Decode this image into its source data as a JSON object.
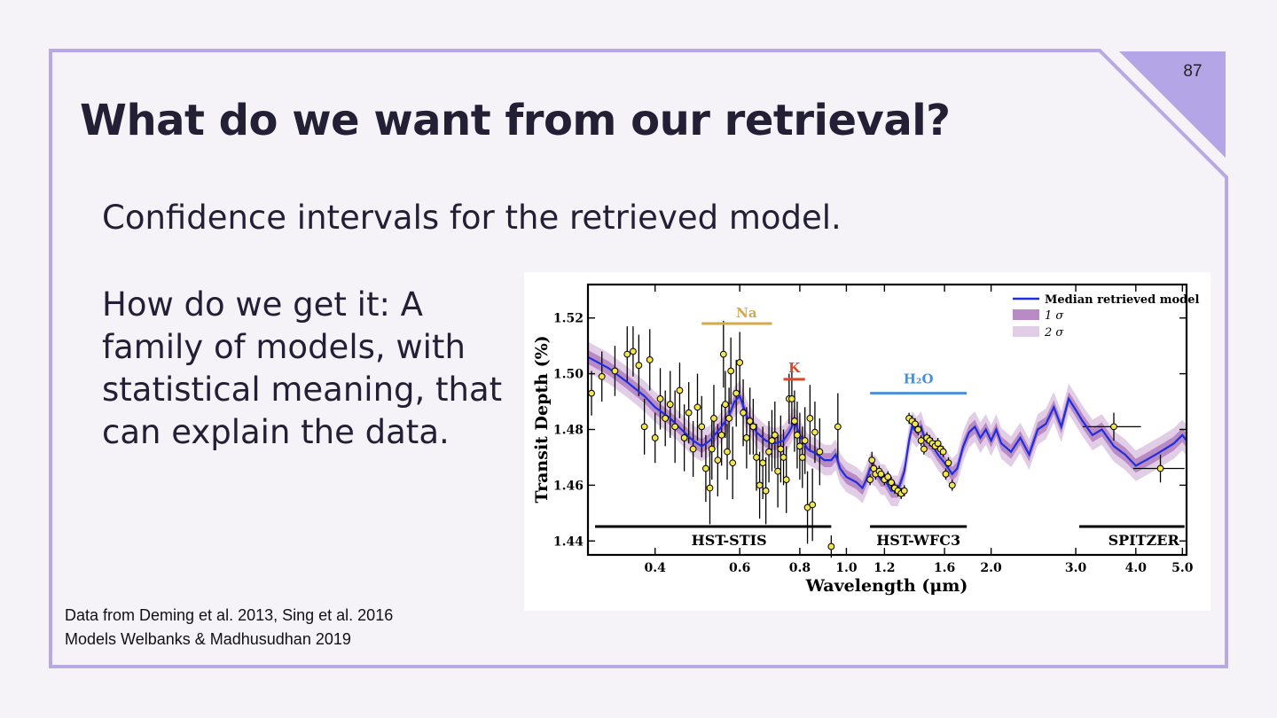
{
  "slide": {
    "page_number": "87",
    "title": "What do we want from our retrieval?",
    "paragraph1": "Confidence intervals for the retrieved model.",
    "paragraph2": "How do we get it: A family of models, with statistical meaning, that can explain the data.",
    "citation1": "Data from Deming et al. 2013, Sing et al. 2016",
    "citation2": "Models Welbanks & Madhusudhan 2019",
    "colors": {
      "accent": "#b4a6e6",
      "frame": "#b7a8e8",
      "text": "#232036",
      "background": "#f5f3f8"
    }
  },
  "chart_data": {
    "type": "line",
    "xscale": "log",
    "xlim": [
      0.29,
      5.1
    ],
    "ylim": [
      1.435,
      1.532
    ],
    "xlabel": "Wavelength (μm)",
    "ylabel": "Transit Depth (%)",
    "xticks": [
      {
        "v": 0.4,
        "l": "0.4"
      },
      {
        "v": 0.6,
        "l": "0.6"
      },
      {
        "v": 0.8,
        "l": "0.8"
      },
      {
        "v": 1.0,
        "l": "1.0"
      },
      {
        "v": 1.2,
        "l": "1.2"
      },
      {
        "v": 1.6,
        "l": "1.6"
      },
      {
        "v": 2.0,
        "l": "2.0"
      },
      {
        "v": 3.0,
        "l": "3.0"
      },
      {
        "v": 4.0,
        "l": "4.0"
      },
      {
        "v": 5.0,
        "l": "5.0"
      }
    ],
    "yticks": [
      {
        "v": 1.44,
        "l": "1.44"
      },
      {
        "v": 1.46,
        "l": "1.46"
      },
      {
        "v": 1.48,
        "l": "1.48"
      },
      {
        "v": 1.5,
        "l": "1.50"
      },
      {
        "v": 1.52,
        "l": "1.52"
      }
    ],
    "legend": {
      "placement": "top-right",
      "entries": [
        "Median retrieved model",
        "1 σ",
        "2 σ"
      ]
    },
    "model": {
      "name": "Median retrieved model",
      "x": [
        0.29,
        0.32,
        0.35,
        0.38,
        0.4,
        0.43,
        0.46,
        0.48,
        0.5,
        0.52,
        0.55,
        0.57,
        0.585,
        0.6,
        0.62,
        0.65,
        0.68,
        0.71,
        0.74,
        0.76,
        0.77,
        0.78,
        0.8,
        0.83,
        0.87,
        0.9,
        0.93,
        0.95,
        0.97,
        1.0,
        1.05,
        1.08,
        1.1,
        1.12,
        1.15,
        1.18,
        1.2,
        1.24,
        1.28,
        1.32,
        1.35,
        1.37,
        1.4,
        1.43,
        1.46,
        1.5,
        1.55,
        1.6,
        1.66,
        1.7,
        1.75,
        1.8,
        1.85,
        1.9,
        1.95,
        2.0,
        2.05,
        2.1,
        2.2,
        2.3,
        2.4,
        2.5,
        2.6,
        2.7,
        2.8,
        2.9,
        3.0,
        3.1,
        3.25,
        3.4,
        3.6,
        3.8,
        4.0,
        4.2,
        4.4,
        4.6,
        4.8,
        5.0,
        5.1
      ],
      "y": [
        1.506,
        1.502,
        1.497,
        1.492,
        1.488,
        1.484,
        1.479,
        1.476,
        1.474,
        1.476,
        1.481,
        1.485,
        1.49,
        1.492,
        1.485,
        1.479,
        1.476,
        1.475,
        1.476,
        1.479,
        1.481,
        1.483,
        1.478,
        1.473,
        1.471,
        1.469,
        1.469,
        1.471,
        1.466,
        1.463,
        1.461,
        1.459,
        1.462,
        1.466,
        1.465,
        1.462,
        1.462,
        1.458,
        1.458,
        1.465,
        1.476,
        1.481,
        1.479,
        1.481,
        1.476,
        1.475,
        1.471,
        1.468,
        1.464,
        1.466,
        1.474,
        1.479,
        1.481,
        1.477,
        1.48,
        1.476,
        1.48,
        1.475,
        1.472,
        1.477,
        1.471,
        1.48,
        1.482,
        1.488,
        1.481,
        1.491,
        1.487,
        1.483,
        1.478,
        1.48,
        1.474,
        1.471,
        1.467,
        1.469,
        1.471,
        1.473,
        1.475,
        1.478,
        1.476
      ],
      "sigma1": 0.0025,
      "sigma2": 0.0055
    },
    "data_points": [
      {
        "x": 0.295,
        "y": 1.493,
        "e": 0.008
      },
      {
        "x": 0.31,
        "y": 1.499,
        "e": 0.009
      },
      {
        "x": 0.33,
        "y": 1.501,
        "e": 0.009
      },
      {
        "x": 0.35,
        "y": 1.507,
        "e": 0.01
      },
      {
        "x": 0.36,
        "y": 1.508,
        "e": 0.009
      },
      {
        "x": 0.37,
        "y": 1.503,
        "e": 0.011
      },
      {
        "x": 0.38,
        "y": 1.481,
        "e": 0.01
      },
      {
        "x": 0.39,
        "y": 1.505,
        "e": 0.011
      },
      {
        "x": 0.4,
        "y": 1.477,
        "e": 0.009
      },
      {
        "x": 0.41,
        "y": 1.491,
        "e": 0.011
      },
      {
        "x": 0.42,
        "y": 1.484,
        "e": 0.01
      },
      {
        "x": 0.43,
        "y": 1.489,
        "e": 0.012
      },
      {
        "x": 0.44,
        "y": 1.481,
        "e": 0.013
      },
      {
        "x": 0.45,
        "y": 1.494,
        "e": 0.01
      },
      {
        "x": 0.46,
        "y": 1.477,
        "e": 0.012
      },
      {
        "x": 0.47,
        "y": 1.486,
        "e": 0.011
      },
      {
        "x": 0.48,
        "y": 1.473,
        "e": 0.01
      },
      {
        "x": 0.49,
        "y": 1.488,
        "e": 0.012
      },
      {
        "x": 0.5,
        "y": 1.481,
        "e": 0.011
      },
      {
        "x": 0.51,
        "y": 1.466,
        "e": 0.012
      },
      {
        "x": 0.52,
        "y": 1.459,
        "e": 0.013
      },
      {
        "x": 0.525,
        "y": 1.473,
        "e": 0.011
      },
      {
        "x": 0.53,
        "y": 1.484,
        "e": 0.012
      },
      {
        "x": 0.54,
        "y": 1.469,
        "e": 0.013
      },
      {
        "x": 0.55,
        "y": 1.478,
        "e": 0.011
      },
      {
        "x": 0.555,
        "y": 1.507,
        "e": 0.012
      },
      {
        "x": 0.56,
        "y": 1.489,
        "e": 0.012
      },
      {
        "x": 0.565,
        "y": 1.472,
        "e": 0.01
      },
      {
        "x": 0.57,
        "y": 1.484,
        "e": 0.011
      },
      {
        "x": 0.575,
        "y": 1.501,
        "e": 0.012
      },
      {
        "x": 0.58,
        "y": 1.468,
        "e": 0.013
      },
      {
        "x": 0.59,
        "y": 1.493,
        "e": 0.012
      },
      {
        "x": 0.6,
        "y": 1.504,
        "e": 0.011
      },
      {
        "x": 0.61,
        "y": 1.486,
        "e": 0.012
      },
      {
        "x": 0.62,
        "y": 1.477,
        "e": 0.011
      },
      {
        "x": 0.63,
        "y": 1.483,
        "e": 0.012
      },
      {
        "x": 0.64,
        "y": 1.481,
        "e": 0.01
      },
      {
        "x": 0.65,
        "y": 1.47,
        "e": 0.012
      },
      {
        "x": 0.66,
        "y": 1.46,
        "e": 0.012
      },
      {
        "x": 0.67,
        "y": 1.468,
        "e": 0.013
      },
      {
        "x": 0.68,
        "y": 1.458,
        "e": 0.012
      },
      {
        "x": 0.69,
        "y": 1.472,
        "e": 0.011
      },
      {
        "x": 0.7,
        "y": 1.476,
        "e": 0.011
      },
      {
        "x": 0.71,
        "y": 1.478,
        "e": 0.012
      },
      {
        "x": 0.72,
        "y": 1.465,
        "e": 0.013
      },
      {
        "x": 0.73,
        "y": 1.473,
        "e": 0.012
      },
      {
        "x": 0.74,
        "y": 1.47,
        "e": 0.01
      },
      {
        "x": 0.75,
        "y": 1.462,
        "e": 0.012
      },
      {
        "x": 0.76,
        "y": 1.491,
        "e": 0.009
      },
      {
        "x": 0.77,
        "y": 1.491,
        "e": 0.01
      },
      {
        "x": 0.78,
        "y": 1.483,
        "e": 0.011
      },
      {
        "x": 0.79,
        "y": 1.478,
        "e": 0.012
      },
      {
        "x": 0.8,
        "y": 1.474,
        "e": 0.012
      },
      {
        "x": 0.81,
        "y": 1.47,
        "e": 0.011
      },
      {
        "x": 0.82,
        "y": 1.476,
        "e": 0.012
      },
      {
        "x": 0.83,
        "y": 1.452,
        "e": 0.013
      },
      {
        "x": 0.84,
        "y": 1.484,
        "e": 0.012
      },
      {
        "x": 0.85,
        "y": 1.453,
        "e": 0.013
      },
      {
        "x": 0.86,
        "y": 1.479,
        "e": 0.011
      },
      {
        "x": 0.88,
        "y": 1.472,
        "e": 0.012
      },
      {
        "x": 0.93,
        "y": 1.438,
        "e": 0.004
      },
      {
        "x": 0.96,
        "y": 1.481,
        "e": 0.012
      },
      {
        "x": 1.12,
        "y": 1.462,
        "e": 0.002
      },
      {
        "x": 1.13,
        "y": 1.469,
        "e": 0.003
      },
      {
        "x": 1.14,
        "y": 1.466,
        "e": 0.002
      },
      {
        "x": 1.15,
        "y": 1.464,
        "e": 0.002
      },
      {
        "x": 1.17,
        "y": 1.465,
        "e": 0.002
      },
      {
        "x": 1.18,
        "y": 1.464,
        "e": 0.002
      },
      {
        "x": 1.2,
        "y": 1.462,
        "e": 0.002
      },
      {
        "x": 1.22,
        "y": 1.463,
        "e": 0.002
      },
      {
        "x": 1.24,
        "y": 1.461,
        "e": 0.002
      },
      {
        "x": 1.26,
        "y": 1.459,
        "e": 0.002
      },
      {
        "x": 1.28,
        "y": 1.458,
        "e": 0.002
      },
      {
        "x": 1.3,
        "y": 1.457,
        "e": 0.002
      },
      {
        "x": 1.32,
        "y": 1.458,
        "e": 0.002
      },
      {
        "x": 1.35,
        "y": 1.484,
        "e": 0.002
      },
      {
        "x": 1.37,
        "y": 1.483,
        "e": 0.002
      },
      {
        "x": 1.39,
        "y": 1.482,
        "e": 0.002
      },
      {
        "x": 1.41,
        "y": 1.48,
        "e": 0.002
      },
      {
        "x": 1.43,
        "y": 1.476,
        "e": 0.002
      },
      {
        "x": 1.45,
        "y": 1.473,
        "e": 0.002
      },
      {
        "x": 1.47,
        "y": 1.477,
        "e": 0.002
      },
      {
        "x": 1.49,
        "y": 1.476,
        "e": 0.002
      },
      {
        "x": 1.51,
        "y": 1.475,
        "e": 0.002
      },
      {
        "x": 1.53,
        "y": 1.474,
        "e": 0.002
      },
      {
        "x": 1.55,
        "y": 1.475,
        "e": 0.002
      },
      {
        "x": 1.57,
        "y": 1.473,
        "e": 0.002
      },
      {
        "x": 1.59,
        "y": 1.472,
        "e": 0.002
      },
      {
        "x": 1.61,
        "y": 1.464,
        "e": 0.002
      },
      {
        "x": 1.63,
        "y": 1.468,
        "e": 0.002
      },
      {
        "x": 1.66,
        "y": 1.46,
        "e": 0.002
      },
      {
        "x": 3.6,
        "y": 1.481,
        "e": 0.005,
        "xe": 0.5
      },
      {
        "x": 4.5,
        "y": 1.466,
        "e": 0.005,
        "xe": 0.55
      }
    ],
    "features": [
      {
        "label": "Na",
        "x0": 0.5,
        "x1": 0.7,
        "y": 1.518,
        "color": "#d4a94a"
      },
      {
        "label": "K",
        "x0": 0.74,
        "x1": 0.82,
        "y": 1.498,
        "color": "#d9472b"
      },
      {
        "label": "H₂O",
        "x0": 1.12,
        "x1": 1.78,
        "y": 1.493,
        "color": "#4a90d9"
      }
    ],
    "instruments": [
      {
        "label": "HST-STIS",
        "x0": 0.3,
        "x1": 0.93
      },
      {
        "label": "HST-WFC3",
        "x0": 1.12,
        "x1": 1.78
      },
      {
        "label": "SPITZER",
        "x0": 3.05,
        "x1": 5.05
      }
    ]
  }
}
